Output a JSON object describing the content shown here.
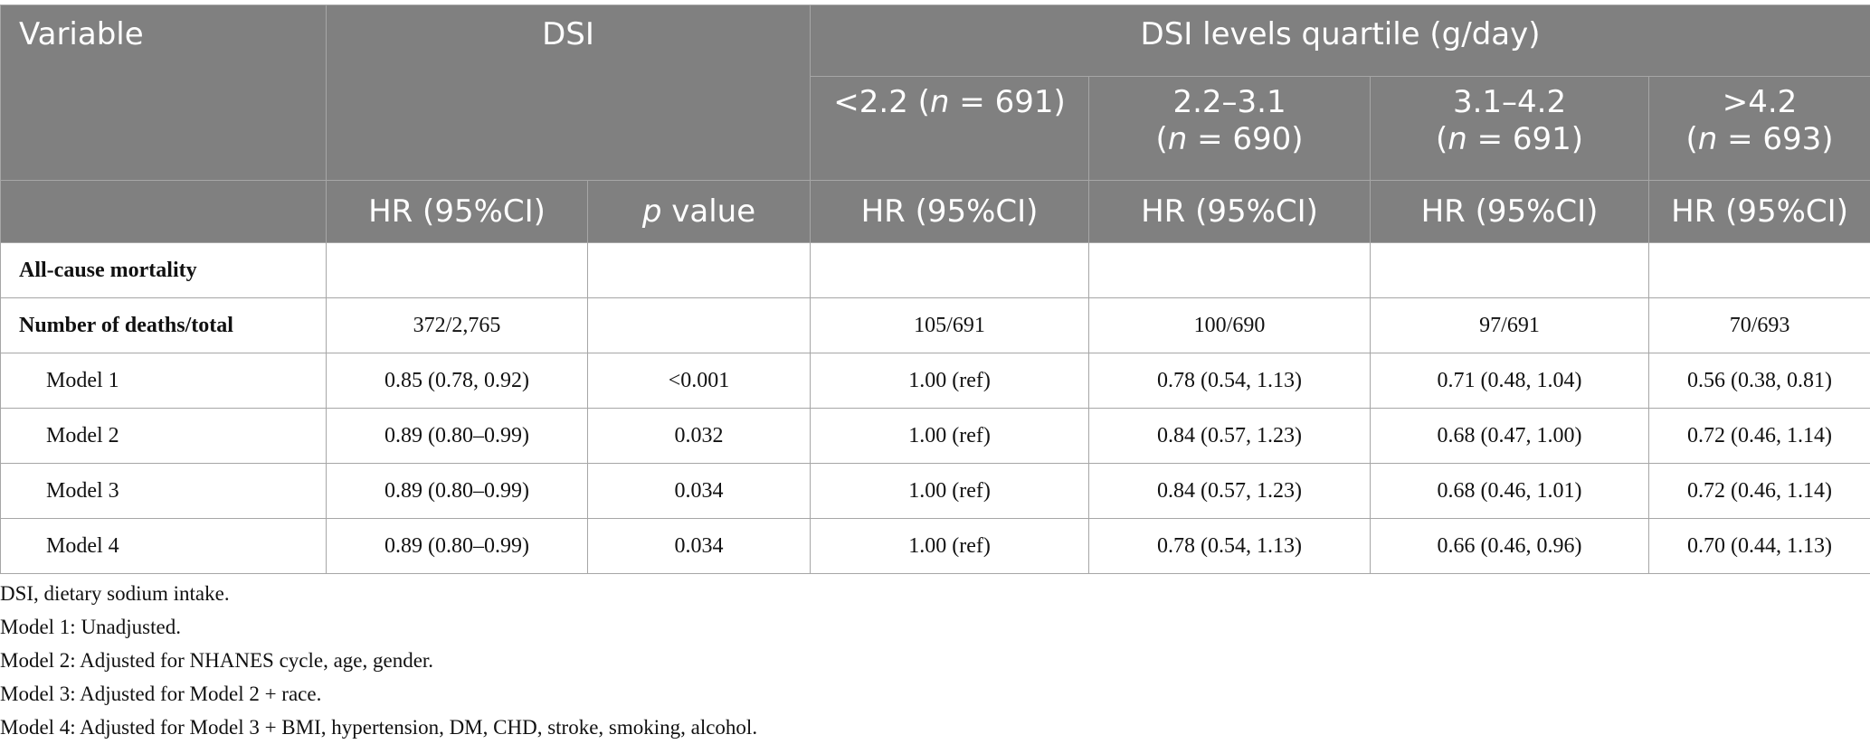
{
  "header": {
    "variable": "Variable",
    "dsi": "DSI",
    "dsi_quartile": "DSI levels quartile (g/day)",
    "quartiles": [
      {
        "range": "<2.2 (",
        "n_var": "n",
        "n_rest": " = 691)"
      },
      {
        "range": "2.2–3.1",
        "n_open": "(",
        "n_var": "n",
        "n_rest": " = 690)"
      },
      {
        "range": "3.1–4.2",
        "n_open": "(",
        "n_var": "n",
        "n_rest": " = 691)"
      },
      {
        "range": ">4.2",
        "n_open": "(",
        "n_var": "n",
        "n_rest": " = 693)"
      }
    ],
    "hr": "HR (95%CI)",
    "p_italic": "p",
    "p_rest": " value"
  },
  "rows": [
    {
      "label": "All-cause mortality",
      "cells": [
        "",
        "",
        "",
        "",
        "",
        ""
      ]
    },
    {
      "label": "Number of deaths/total",
      "cells": [
        "372/2,765",
        "",
        "105/691",
        "100/690",
        "97/691",
        "70/693"
      ]
    },
    {
      "label": "Model 1",
      "cells": [
        "0.85 (0.78, 0.92)",
        "<0.001",
        "1.00 (ref)",
        "0.78 (0.54, 1.13)",
        "0.71 (0.48, 1.04)",
        "0.56 (0.38, 0.81)"
      ]
    },
    {
      "label": "Model 2",
      "cells": [
        "0.89 (0.80–0.99)",
        "0.032",
        "1.00 (ref)",
        "0.84 (0.57, 1.23)",
        "0.68 (0.47, 1.00)",
        "0.72 (0.46, 1.14)"
      ]
    },
    {
      "label": "Model 3",
      "cells": [
        "0.89 (0.80–0.99)",
        "0.034",
        "1.00 (ref)",
        "0.84 (0.57, 1.23)",
        "0.68 (0.46, 1.01)",
        "0.72 (0.46, 1.14)"
      ]
    },
    {
      "label": "Model 4",
      "cells": [
        "0.89 (0.80–0.99)",
        "0.034",
        "1.00 (ref)",
        "0.78 (0.54, 1.13)",
        "0.66 (0.46, 0.96)",
        "0.70 (0.44, 1.13)"
      ]
    }
  ],
  "notes": [
    "DSI, dietary sodium intake.",
    "Model 1: Unadjusted.",
    "Model 2: Adjusted for NHANES cycle, age, gender.",
    "Model 3: Adjusted for Model 2 + race.",
    "Model 4: Adjusted for Model 3 + BMI, hypertension, DM, CHD, stroke, smoking, alcohol."
  ]
}
